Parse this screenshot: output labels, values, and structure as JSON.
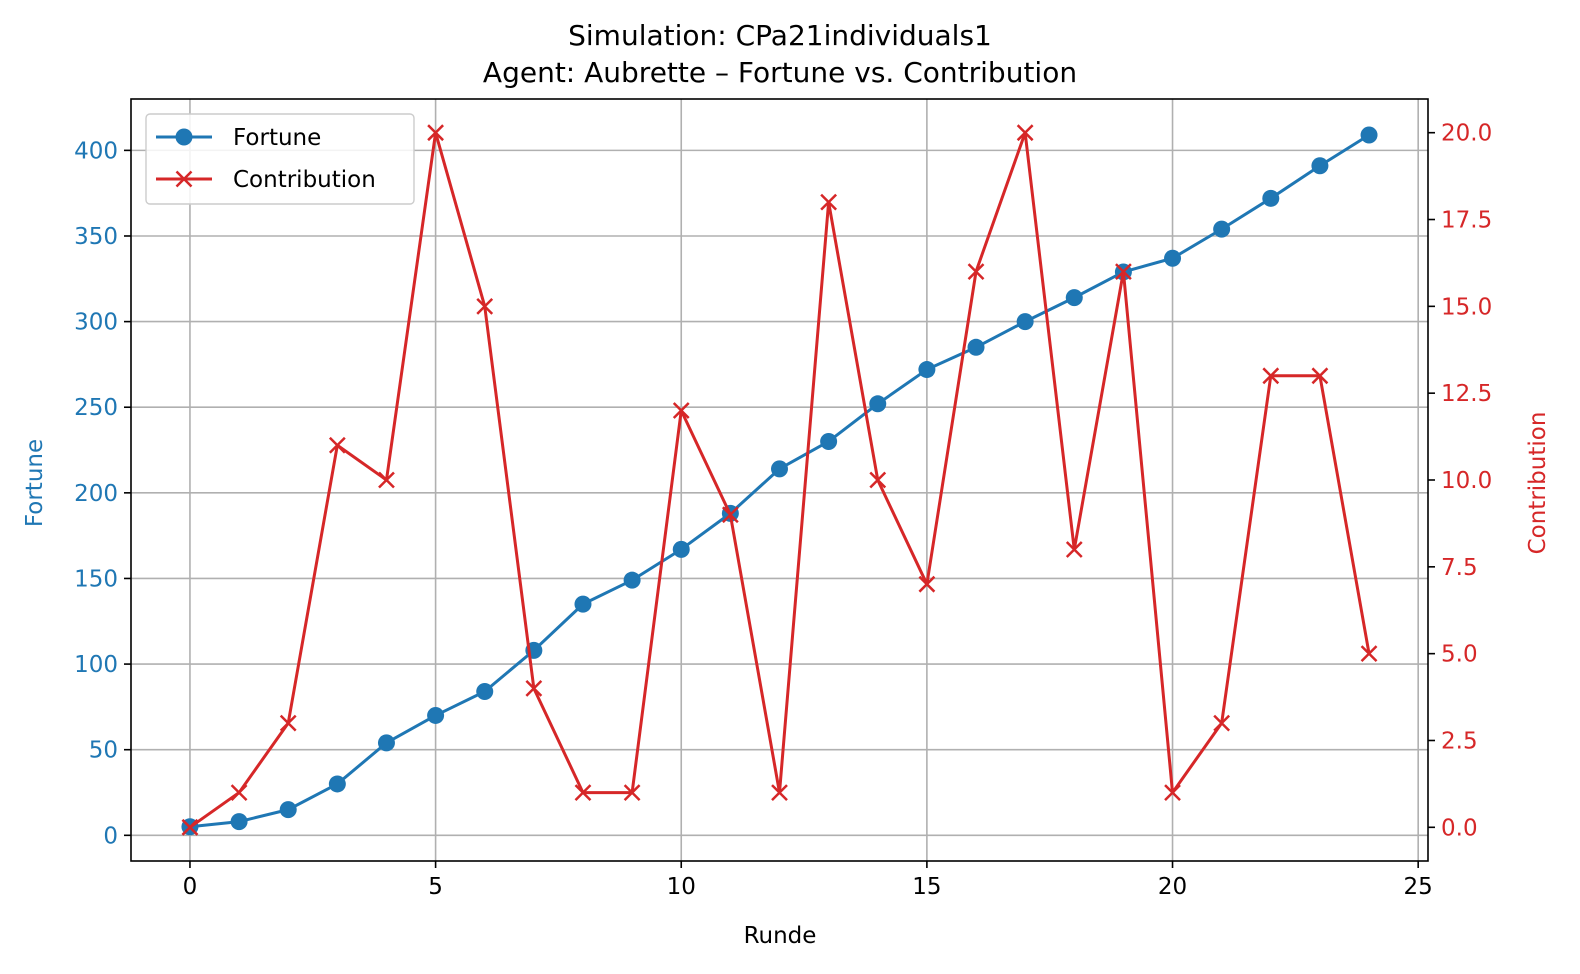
{
  "chart_data": {
    "type": "line",
    "title_line1": "Simulation: CPa21individuals1",
    "title_line2": "Agent: Aubrette – Fortune vs. Contribution",
    "xlabel": "Runde",
    "ylabel_left": "Fortune",
    "ylabel_right": "Contribution",
    "grid": true,
    "legend_position": "upper-left",
    "x": [
      0,
      1,
      2,
      3,
      4,
      5,
      6,
      7,
      8,
      9,
      10,
      11,
      12,
      13,
      14,
      15,
      16,
      17,
      18,
      19,
      20,
      21,
      22,
      23,
      24
    ],
    "xlim": [
      -1.2,
      25.2
    ],
    "xticks": [
      0,
      5,
      10,
      15,
      20,
      25
    ],
    "ylim_left": [
      -15,
      430
    ],
    "yticks_left": [
      0,
      50,
      100,
      150,
      200,
      250,
      300,
      350,
      400
    ],
    "ylim_right": [
      -0.97,
      20.97
    ],
    "yticks_right": [
      "0.0",
      "2.5",
      "5.0",
      "7.5",
      "10.0",
      "12.5",
      "15.0",
      "17.5",
      "20.0"
    ],
    "series": [
      {
        "name": "Fortune",
        "axis": "left",
        "color": "#1f77b4",
        "marker": "circle",
        "values": [
          5,
          8,
          15,
          30,
          54,
          70,
          84,
          108,
          135,
          149,
          167,
          188,
          214,
          230,
          252,
          272,
          285,
          300,
          314,
          329,
          337,
          354,
          372,
          391,
          409
        ]
      },
      {
        "name": "Contribution",
        "axis": "right",
        "color": "#d62728",
        "marker": "x",
        "values": [
          0,
          1,
          3,
          11,
          10,
          20,
          15,
          4,
          1,
          1,
          12,
          9,
          1,
          18,
          10,
          7,
          16,
          20,
          8,
          16,
          1,
          3,
          13,
          13,
          5
        ]
      }
    ]
  }
}
